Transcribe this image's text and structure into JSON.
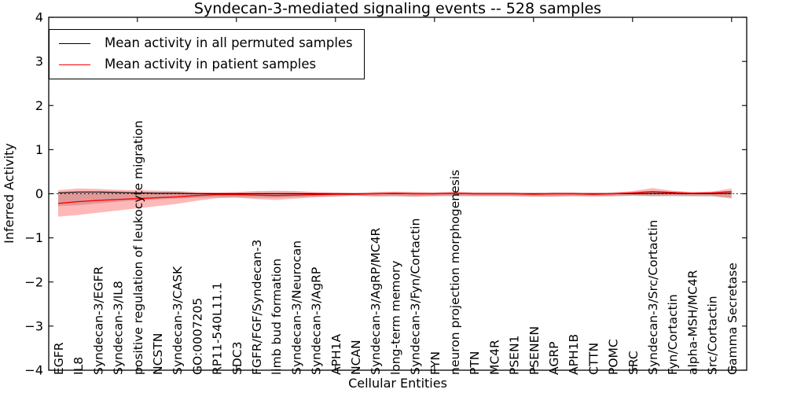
{
  "figure": {
    "title": "Syndecan-3-mediated signaling events -- 528 samples",
    "xlabel": "Cellular Entities",
    "ylabel": "Inferred Activity",
    "legend": [
      {
        "label": "Mean activity in all permuted samples",
        "color": "#000000"
      },
      {
        "label": "Mean activity in patient samples",
        "color": "#ff0000"
      }
    ]
  },
  "chart_data": {
    "type": "line",
    "title": "Syndecan-3-mediated signaling events -- 528 samples",
    "xlabel": "Cellular Entities",
    "ylabel": "Inferred Activity",
    "ylim": [
      -4,
      4
    ],
    "yticks": [
      4,
      3,
      2,
      1,
      0,
      -1,
      -2,
      -3,
      -4
    ],
    "grid": false,
    "legend_position": "upper left",
    "zero_line": {
      "style": "dotted",
      "color": "#000000",
      "y": 0
    },
    "categories": [
      "EGFR",
      "IL8",
      "Syndecan-3/EGFR",
      "Syndecan-3/IL8",
      "positive regulation of leukocyte migration",
      "NCSTN",
      "Syndecan-3/CASK",
      "GO:0007205",
      "RP11-540L11.1",
      "SDC3",
      "FGFR/FGF/Syndecan-3",
      "limb bud formation",
      "Syndecan-3/Neurocan",
      "Syndecan-3/AgRP",
      "APH1A",
      "NCAN",
      "Syndecan-3/AgRP/MC4R",
      "long-term memory",
      "Syndecan-3/Fyn/Cortactin",
      "FYN",
      "neuron projection morphogenesis",
      "PTN",
      "MC4R",
      "PSEN1",
      "PSENEN",
      "AGRP",
      "APH1B",
      "CTTN",
      "POMC",
      "SRC",
      "Syndecan-3/Src/Cortactin",
      "Fyn/Cortactin",
      "alpha-MSH/MC4R",
      "Src/Cortactin",
      "Gamma Secretase"
    ],
    "series": [
      {
        "name": "Mean activity in all permuted samples",
        "color": "#000000",
        "values": [
          0.02,
          0.04,
          0.04,
          0.03,
          0.02,
          0.01,
          0.01,
          0,
          0,
          0,
          0,
          0,
          0,
          0,
          0,
          0,
          0,
          0,
          0,
          0,
          0.01,
          0,
          0,
          0,
          0,
          0,
          0,
          0,
          0,
          0,
          0.01,
          0.01,
          0,
          0,
          0.01
        ]
      },
      {
        "name": "Mean activity in patient samples",
        "color": "#ff0000",
        "values": [
          -0.22,
          -0.18,
          -0.15,
          -0.13,
          -0.11,
          -0.09,
          -0.07,
          -0.04,
          -0.02,
          -0.02,
          -0.03,
          -0.04,
          -0.03,
          -0.02,
          -0.01,
          -0.01,
          0,
          0.01,
          0,
          0,
          0.01,
          0,
          0,
          0,
          -0.01,
          0,
          0,
          -0.01,
          0,
          0.02,
          0.05,
          0.03,
          0.01,
          0.02,
          0.05
        ]
      }
    ],
    "bands": [
      {
        "name": "permuted-samples-band",
        "color": "#888888",
        "opacity": 0.35,
        "upper": [
          0.04,
          0.05,
          0.05,
          0.05,
          0.04,
          0.04,
          0.04,
          0.03,
          0.03,
          0.03,
          0.04,
          0.04,
          0.04,
          0.03,
          0.03,
          0.02,
          0.03,
          0.03,
          0.03,
          0.03,
          0.03,
          0.03,
          0.03,
          0.03,
          0.03,
          0.03,
          0.03,
          0.03,
          0.03,
          0.03,
          0.04,
          0.03,
          0.03,
          0.03,
          0.04
        ],
        "lower": [
          -0.28,
          -0.26,
          -0.22,
          -0.18,
          -0.15,
          -0.13,
          -0.11,
          -0.09,
          -0.08,
          -0.08,
          -0.09,
          -0.09,
          -0.08,
          -0.07,
          -0.06,
          -0.05,
          -0.06,
          -0.06,
          -0.07,
          -0.06,
          -0.06,
          -0.06,
          -0.06,
          -0.06,
          -0.07,
          -0.07,
          -0.06,
          -0.06,
          -0.06,
          -0.05,
          -0.06,
          -0.06,
          -0.06,
          -0.06,
          -0.09
        ]
      },
      {
        "name": "patient-samples-band",
        "color": "#ff0000",
        "opacity": 0.28,
        "upper": [
          0.08,
          0.12,
          0.11,
          0.09,
          0.08,
          0.07,
          0.06,
          0.04,
          0.03,
          0.04,
          0.06,
          0.07,
          0.06,
          0.04,
          0.03,
          0.02,
          0.04,
          0.05,
          0.04,
          0.03,
          0.05,
          0.03,
          0.03,
          0.03,
          0.02,
          0.03,
          0.03,
          0.02,
          0.03,
          0.06,
          0.13,
          0.07,
          0.04,
          0.05,
          0.12
        ],
        "lower": [
          -0.52,
          -0.48,
          -0.43,
          -0.38,
          -0.33,
          -0.28,
          -0.23,
          -0.16,
          -0.1,
          -0.09,
          -0.12,
          -0.14,
          -0.11,
          -0.08,
          -0.06,
          -0.04,
          -0.06,
          -0.05,
          -0.06,
          -0.05,
          -0.04,
          -0.05,
          -0.05,
          -0.05,
          -0.06,
          -0.06,
          -0.05,
          -0.06,
          -0.05,
          -0.04,
          -0.05,
          -0.04,
          -0.05,
          -0.05,
          -0.11
        ]
      }
    ]
  }
}
